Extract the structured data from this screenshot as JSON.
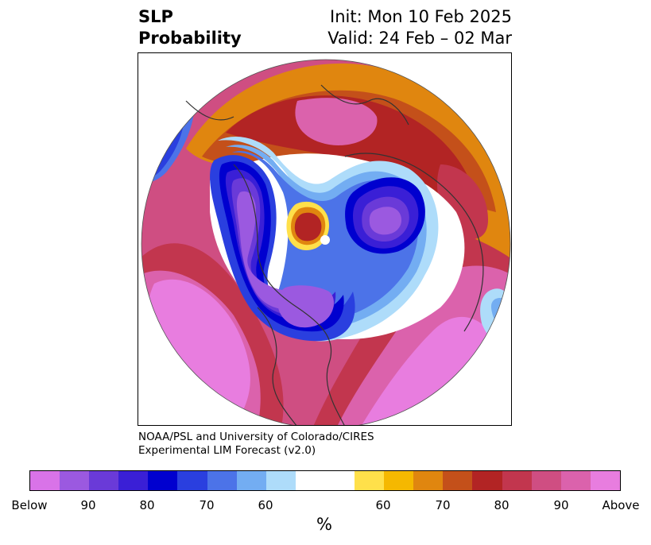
{
  "title": {
    "left_line1": "SLP",
    "left_line2": "Probability",
    "right_line1": "Init: Mon 10 Feb 2025",
    "right_line2": "Valid: 24 Feb – 02 Mar"
  },
  "credit": {
    "line1": "NOAA/PSL and University of Colorado/CIRES",
    "line2": "Experimental LIM Forecast (v2.0)"
  },
  "colorbar": {
    "unit": "%",
    "tick_labels": [
      "Below",
      "90",
      "80",
      "70",
      "60",
      "60",
      "70",
      "80",
      "90",
      "Above"
    ],
    "colors_below": [
      "#d973e8",
      "#9b59e0",
      "#6a3ad8",
      "#3a1fd6",
      "#0000cf",
      "#2a3fdf",
      "#4c73e8",
      "#73adf2",
      "#aedcfa"
    ],
    "color_neutral": "#ffffff",
    "colors_above": [
      "#ffe04a",
      "#f5b800",
      "#e0860f",
      "#c4501a",
      "#b22424",
      "#c2364e",
      "#cf4e82",
      "#db62ac",
      "#e87ddf"
    ]
  },
  "map": {
    "projection": "north-polar-stereographic",
    "background": "#ffffff",
    "coastline_color": "#333333"
  }
}
